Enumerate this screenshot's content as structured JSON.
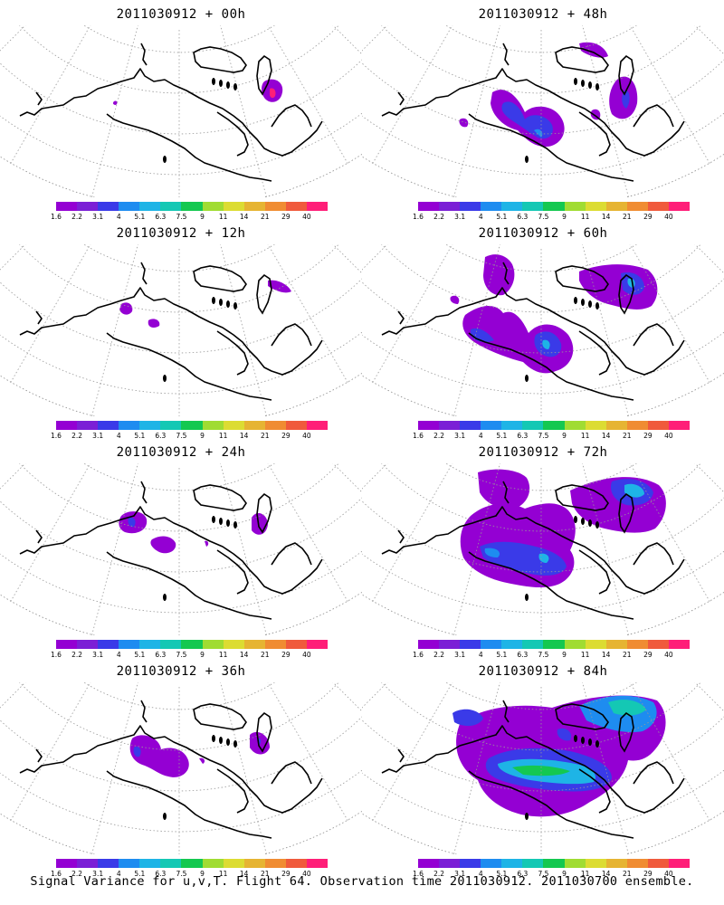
{
  "colorbar": {
    "levels": [
      "1.6",
      "2.2",
      "3.1",
      "4",
      "5.1",
      "6.3",
      "7.5",
      "9",
      "11",
      "14",
      "21",
      "29",
      "40"
    ],
    "colors": [
      "#9400d3",
      "#7b1fd6",
      "#3a3ae8",
      "#1e8cf0",
      "#1eb4e6",
      "#14c8b4",
      "#14c850",
      "#a0dc32",
      "#dcdc32",
      "#e6b432",
      "#f08c32",
      "#f05a3c",
      "#ff1e78"
    ]
  },
  "panels": [
    {
      "title": "2011030912 + 00h",
      "lead": 0
    },
    {
      "title": "2011030912 + 48h",
      "lead": 48
    },
    {
      "title": "2011030912 + 12h",
      "lead": 12
    },
    {
      "title": "2011030912 + 60h",
      "lead": 60
    },
    {
      "title": "2011030912 + 24h",
      "lead": 24
    },
    {
      "title": "2011030912 + 72h",
      "lead": 72
    },
    {
      "title": "2011030912 + 36h",
      "lead": 36
    },
    {
      "title": "2011030912 + 84h",
      "lead": 84
    }
  ],
  "footer": "Signal Variance for u,v,T. Flight 64. Observation time 2011030912. 2011030700 ensemble."
}
